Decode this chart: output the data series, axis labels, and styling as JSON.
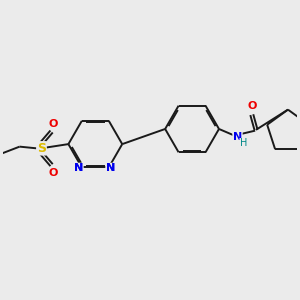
{
  "background_color": "#ebebeb",
  "bond_color": "#1a1a1a",
  "atom_colors": {
    "N": "#0000ee",
    "O": "#ee0000",
    "S": "#ddbb00",
    "H": "#008888"
  },
  "figsize": [
    3.0,
    3.0
  ],
  "dpi": 100
}
